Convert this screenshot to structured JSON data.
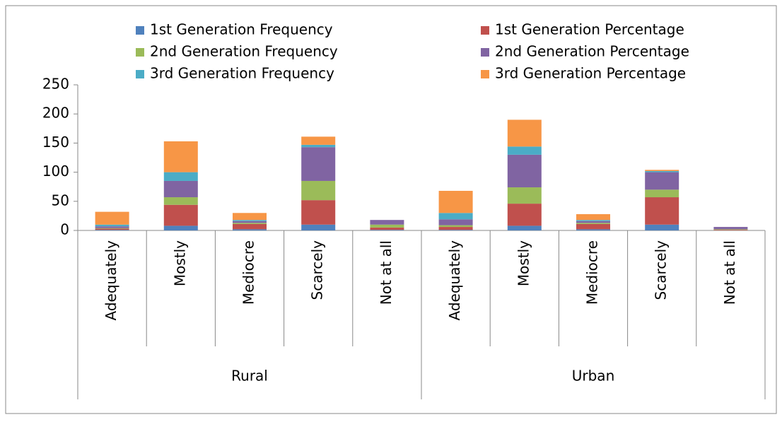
{
  "chart_data": {
    "type": "stacked_bar",
    "categories": [
      "Adequately",
      "Mostly",
      "Mediocre",
      "Scarcely",
      "Not at all",
      "Adequately",
      "Mostly",
      "Mediocre",
      "Scarcely",
      "Not at all"
    ],
    "groups": [
      {
        "name": "Rural",
        "size": 5
      },
      {
        "name": "Urban",
        "size": 5
      }
    ],
    "series": [
      {
        "name": "1st Generation Frequency",
        "color": "#4f81bd",
        "values": [
          1,
          8,
          2,
          10,
          1,
          1,
          8,
          2,
          10,
          0
        ]
      },
      {
        "name": "1st Generation Percentage",
        "color": "#c0504d",
        "values": [
          2,
          36,
          9,
          42,
          4,
          5,
          38,
          9,
          47,
          1
        ]
      },
      {
        "name": "2nd Generation Frequency",
        "color": "#9bbb59",
        "values": [
          1,
          13,
          2,
          33,
          5,
          3,
          28,
          2,
          13,
          1
        ]
      },
      {
        "name": "2nd Generation Percentage",
        "color": "#8064a2",
        "values": [
          3,
          28,
          3,
          58,
          8,
          10,
          56,
          3,
          30,
          4
        ]
      },
      {
        "name": "3rd Generation Frequency",
        "color": "#4bacc6",
        "values": [
          3,
          15,
          2,
          4,
          0,
          11,
          14,
          2,
          2,
          0
        ]
      },
      {
        "name": "3rd Generation Percentage",
        "color": "#f79646",
        "values": [
          22,
          53,
          12,
          14,
          0,
          38,
          46,
          10,
          2,
          0
        ]
      }
    ],
    "ylim": [
      0,
      250
    ],
    "yticks": [
      0,
      50,
      100,
      150,
      200,
      250
    ],
    "legend": "top"
  }
}
